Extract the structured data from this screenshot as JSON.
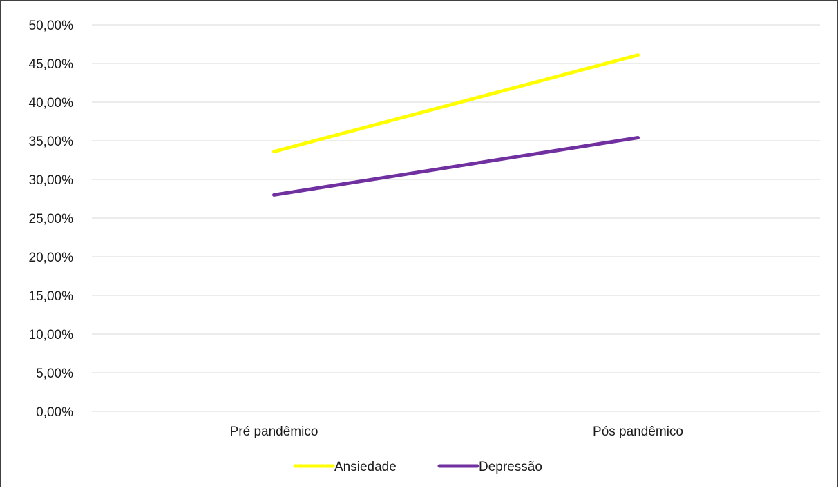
{
  "chart_data": {
    "type": "line",
    "title": "",
    "xlabel": "",
    "ylabel": "",
    "categories": [
      "Pré pandêmico",
      "Pós pandêmico"
    ],
    "series": [
      {
        "name": "Ansiedade",
        "values": [
          33.6,
          46.1
        ],
        "color": "#ffff00"
      },
      {
        "name": "Depressão",
        "values": [
          28.0,
          35.4
        ],
        "color": "#7030a0"
      }
    ],
    "ylim": [
      0,
      50
    ],
    "ytick_step": 5,
    "ytick_labels": [
      "0,00%",
      "5,00%",
      "10,00%",
      "15,00%",
      "20,00%",
      "25,00%",
      "30,00%",
      "35,00%",
      "40,00%",
      "45,00%",
      "50,00%"
    ],
    "grid": true,
    "grid_color": "#d9d9d9",
    "legend_position": "bottom"
  }
}
